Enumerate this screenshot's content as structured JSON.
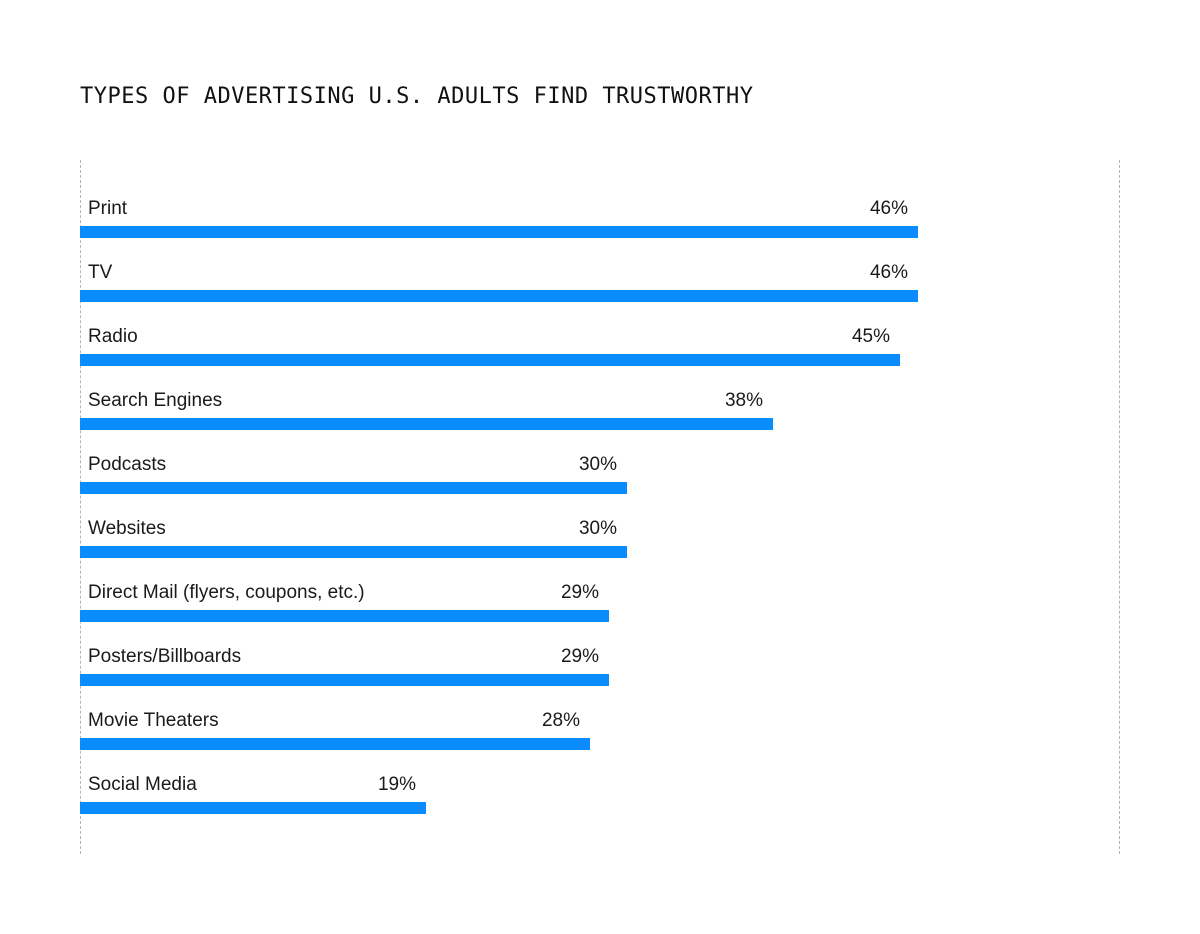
{
  "chart_data": {
    "type": "bar",
    "orientation": "horizontal",
    "title": "TYPES OF ADVERTISING U.S. ADULTS FIND TRUSTWORTHY",
    "categories": [
      "Print",
      "TV",
      "Radio",
      "Search Engines",
      "Podcasts",
      "Websites",
      "Direct Mail (flyers, coupons, etc.)",
      "Posters/Billboards",
      "Movie Theaters",
      "Social Media"
    ],
    "values": [
      46,
      46,
      45,
      38,
      30,
      30,
      29,
      29,
      28,
      19
    ],
    "value_labels": [
      "46%",
      "46%",
      "45%",
      "38%",
      "30%",
      "30%",
      "29%",
      "29%",
      "28%",
      "19%"
    ],
    "unit": "%",
    "xlim": [
      0,
      57
    ],
    "grid": false,
    "legend": "none",
    "bar_color": "#0a8cff"
  }
}
